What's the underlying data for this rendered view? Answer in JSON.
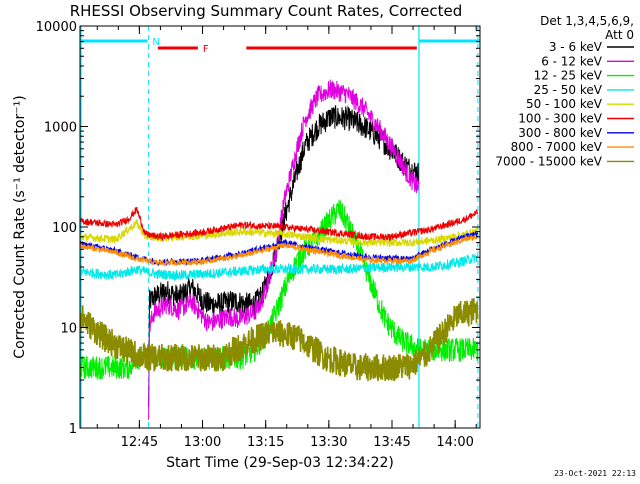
{
  "chart_data": {
    "type": "line",
    "title": "RHESSI Observing Summary Count Rates, Corrected",
    "xlabel": "Start Time (29-Sep-03 12:34:22)",
    "ylabel": "Corrected Count Rate (s⁻¹ detector⁻¹)",
    "yscale": "log",
    "ylim": [
      1,
      10000
    ],
    "xlim_minutes": [
      -3.5,
      91.5
    ],
    "x_unit": "minutes after 12:34:22",
    "x_ticks": [
      {
        "label": "12:45",
        "t": 10.6
      },
      {
        "label": "13:00",
        "t": 25.6
      },
      {
        "label": "13:15",
        "t": 40.6
      },
      {
        "label": "13:30",
        "t": 55.6
      },
      {
        "label": "13:45",
        "t": 70.6
      },
      {
        "label": "14:00",
        "t": 85.6
      }
    ],
    "y_ticks": [
      {
        "label": "1",
        "v": 1
      },
      {
        "label": "10",
        "v": 10
      },
      {
        "label": "100",
        "v": 100
      },
      {
        "label": "1000",
        "v": 1000
      },
      {
        "label": "10000",
        "v": 10000
      }
    ],
    "legend_title": [
      "Det 1,3,4,5,6,9,",
      "Att 0"
    ],
    "footer_date": "23-Oct-2021 22:13",
    "flags": [
      {
        "label": "N",
        "color": "#00e5ff",
        "t0": -3.5,
        "t1": 12.5
      },
      {
        "label": "F",
        "color": "#ee0000",
        "t0": 15.0,
        "t1": 24.5
      },
      {
        "label": "",
        "color": "#ee0000",
        "t0": 36.0,
        "t1": 76.5
      },
      {
        "label": "",
        "color": "#00e5ff",
        "t0": 77.0,
        "t1": 91.5
      }
    ],
    "intervals_dashed": [
      12.8,
      91.0
    ],
    "intervals_solid": [
      -3.5,
      77.0
    ],
    "series": [
      {
        "name": "3 - 6 keV",
        "color": "#000000",
        "noise": 0.12,
        "t0": 12.8,
        "t1": 77.0,
        "x": [
          12.8,
          13.0,
          14.0,
          17.0,
          20.0,
          23.0,
          25.0,
          27.0,
          30.0,
          32.0,
          34.0,
          36.0,
          38.0,
          40.0,
          42.0,
          45.0,
          48.0,
          50.0,
          53.0,
          56.0,
          60.0,
          64.0,
          68.0,
          72.0,
          74.0,
          77.0
        ],
        "values": [
          1.5,
          18,
          20,
          23,
          20,
          25,
          20,
          17,
          17,
          18,
          18,
          17,
          17,
          22,
          40,
          120,
          350,
          650,
          1000,
          1250,
          1200,
          1000,
          750,
          500,
          400,
          340
        ]
      },
      {
        "name": "6 - 12 keV",
        "color": "#e000e0",
        "noise": 0.1,
        "t0": 12.8,
        "t1": 77.0,
        "x": [
          12.8,
          13.0,
          14.0,
          17.0,
          20.0,
          23.0,
          25.0,
          27.0,
          30.0,
          32.0,
          34.0,
          36.0,
          38.0,
          40.0,
          43.0,
          45.0,
          48.0,
          50.0,
          53.0,
          56.0,
          60.0,
          64.0,
          68.0,
          72.0,
          74.0,
          76.5
        ],
        "values": [
          1.5,
          10,
          14,
          17,
          15,
          18,
          14,
          11,
          12,
          13,
          12,
          13,
          14,
          20,
          55,
          180,
          600,
          1200,
          2000,
          2350,
          2100,
          1500,
          900,
          500,
          350,
          250
        ]
      },
      {
        "name": "12 - 25 keV",
        "color": "#00ee00",
        "noise": 0.12,
        "t0": -3.5,
        "t1": 91.0,
        "x": [
          -3.5,
          8.0,
          10.0,
          14.0,
          20.0,
          25.0,
          30.0,
          35.0,
          38.0,
          41.0,
          43.0,
          46.0,
          48.0,
          50.0,
          53.0,
          56.0,
          58.0,
          60.0,
          63.0,
          66.0,
          69.0,
          72.0,
          74.0,
          77.0,
          79.0,
          83.0,
          88.0,
          91.0
        ],
        "values": [
          4,
          4,
          5,
          5,
          5,
          5,
          5,
          5,
          6,
          9,
          14,
          30,
          45,
          60,
          80,
          120,
          150,
          110,
          55,
          25,
          12,
          8,
          7,
          6,
          6,
          6,
          6,
          6
        ]
      },
      {
        "name": "25 - 50 keV",
        "color": "#00e8e8",
        "noise": 0.05,
        "t0": -3.5,
        "t1": 91.0,
        "x": [
          -3.5,
          5.0,
          8.0,
          10.0,
          12.0,
          15.0,
          20.0,
          30.0,
          40.0,
          50.0,
          60.0,
          70.0,
          80.0,
          86.0,
          91.0
        ],
        "values": [
          36,
          33,
          36,
          38,
          36,
          34,
          33,
          35,
          38,
          38,
          38,
          40,
          40,
          44,
          50
        ]
      },
      {
        "name": "50 - 100 keV",
        "color": "#d8d800",
        "noise": 0.04,
        "t0": -3.5,
        "t1": 91.0,
        "x": [
          -3.5,
          5.0,
          8.0,
          10.0,
          12.0,
          15.0,
          25.0,
          35.0,
          45.0,
          55.0,
          65.0,
          75.0,
          82.0,
          91.0
        ],
        "values": [
          80,
          75,
          95,
          110,
          80,
          78,
          82,
          90,
          85,
          75,
          70,
          70,
          75,
          90
        ]
      },
      {
        "name": "100 - 300 keV",
        "color": "#ee0000",
        "noise": 0.035,
        "t0": -3.5,
        "t1": 91.0,
        "x": [
          -3.5,
          5.0,
          8.0,
          10.0,
          12.0,
          15.0,
          25.0,
          35.0,
          45.0,
          55.0,
          65.0,
          70.0,
          80.0,
          88.0,
          91.0
        ],
        "values": [
          115,
          105,
          120,
          150,
          85,
          80,
          88,
          105,
          100,
          90,
          80,
          80,
          95,
          120,
          140
        ]
      },
      {
        "name": "300 - 800 keV",
        "color": "#0000ee",
        "noise": 0.03,
        "t0": -3.5,
        "t1": 91.0,
        "x": [
          -3.5,
          5.0,
          10.0,
          15.0,
          25.0,
          35.0,
          45.0,
          55.0,
          65.0,
          75.0,
          80.0,
          88.0,
          91.0
        ],
        "values": [
          68,
          58,
          50,
          45,
          46,
          55,
          70,
          58,
          50,
          48,
          60,
          80,
          85
        ]
      },
      {
        "name": "800 - 7000 keV",
        "color": "#ff8c00",
        "noise": 0.03,
        "t0": -3.5,
        "t1": 91.0,
        "x": [
          -3.5,
          5.0,
          10.0,
          15.0,
          25.0,
          35.0,
          45.0,
          55.0,
          65.0,
          75.0,
          80.0,
          88.0,
          91.0
        ],
        "values": [
          65,
          56,
          48,
          44,
          45,
          52,
          66,
          55,
          47,
          46,
          58,
          76,
          80
        ]
      },
      {
        "name": "7000 - 15000 keV",
        "color": "#8b8b00",
        "noise": 0.14,
        "t0": -3.5,
        "t1": 91.0,
        "x": [
          -3.5,
          2.0,
          7.0,
          12.0,
          20.0,
          30.0,
          36.0,
          42.0,
          48.0,
          55.0,
          62.0,
          70.0,
          75.0,
          78.0,
          82.0,
          86.0,
          91.0
        ],
        "values": [
          13,
          8,
          6,
          5,
          5,
          5,
          7,
          9,
          8,
          5,
          4,
          4,
          4.2,
          5,
          8,
          13,
          15
        ]
      }
    ]
  }
}
